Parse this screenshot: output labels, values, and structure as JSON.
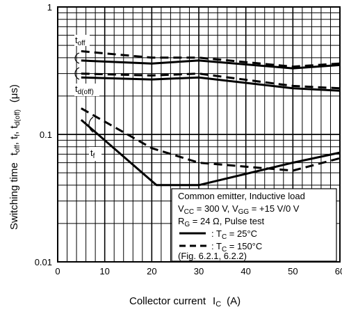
{
  "chart_data": {
    "type": "line",
    "title": "",
    "xlabel": "Collector current",
    "xlabel_symbol": "I",
    "xlabel_symbol_sub": "C",
    "xlabel_unit": "(A)",
    "ylabel": "Switching time",
    "ylabel_terms": "t",
    "ylabel_unit": "(μs)",
    "xlim": [
      0,
      60
    ],
    "ylim": [
      0.01,
      1
    ],
    "yscale": "log",
    "grid": true,
    "x_ticks": [
      "0",
      "10",
      "20",
      "30",
      "40",
      "50",
      "60"
    ],
    "y_ticks": [
      "0.01",
      "0.1",
      "1"
    ],
    "series": [
      {
        "name": "toff",
        "condition": "25C",
        "x": [
          5,
          20,
          30,
          50,
          60
        ],
        "y": [
          0.38,
          0.36,
          0.38,
          0.33,
          0.35
        ]
      },
      {
        "name": "toff",
        "condition": "150C",
        "x": [
          5,
          20,
          30,
          50,
          60
        ],
        "y": [
          0.45,
          0.4,
          0.4,
          0.34,
          0.36
        ]
      },
      {
        "name": "td(off)",
        "condition": "25C",
        "x": [
          5,
          20,
          30,
          50,
          60
        ],
        "y": [
          0.28,
          0.27,
          0.28,
          0.23,
          0.22
        ]
      },
      {
        "name": "td(off)",
        "condition": "150C",
        "x": [
          5,
          20,
          30,
          50,
          60
        ],
        "y": [
          0.3,
          0.29,
          0.3,
          0.24,
          0.23
        ]
      },
      {
        "name": "tf",
        "condition": "25C",
        "x": [
          5,
          21,
          30,
          50,
          60
        ],
        "y": [
          0.13,
          0.04,
          0.04,
          0.06,
          0.072
        ]
      },
      {
        "name": "tf",
        "condition": "150C",
        "x": [
          5,
          20,
          30,
          50,
          60
        ],
        "y": [
          0.16,
          0.078,
          0.06,
          0.052,
          0.065
        ]
      }
    ],
    "curve_labels": {
      "toff": "off",
      "td_main": "d(off)",
      "tf": "f"
    },
    "legend": {
      "placement": "bottom-right",
      "conditions": [
        "Common emitter, Inductive load",
        "V",
        "CC",
        " = 300 V, V",
        "GG",
        " = +15 V/0 V",
        "R",
        "G",
        " = 24 Ω, Pulse test"
      ],
      "entries": [
        {
          "style": "solid",
          "label": ": T",
          "sub": "C",
          "rest": " = 25°C"
        },
        {
          "style": "dashed",
          "label": ": T",
          "sub": "C",
          "rest": " = 150°C"
        }
      ],
      "reference": "(Fig. 6.2.1, 6.2.2)"
    }
  }
}
